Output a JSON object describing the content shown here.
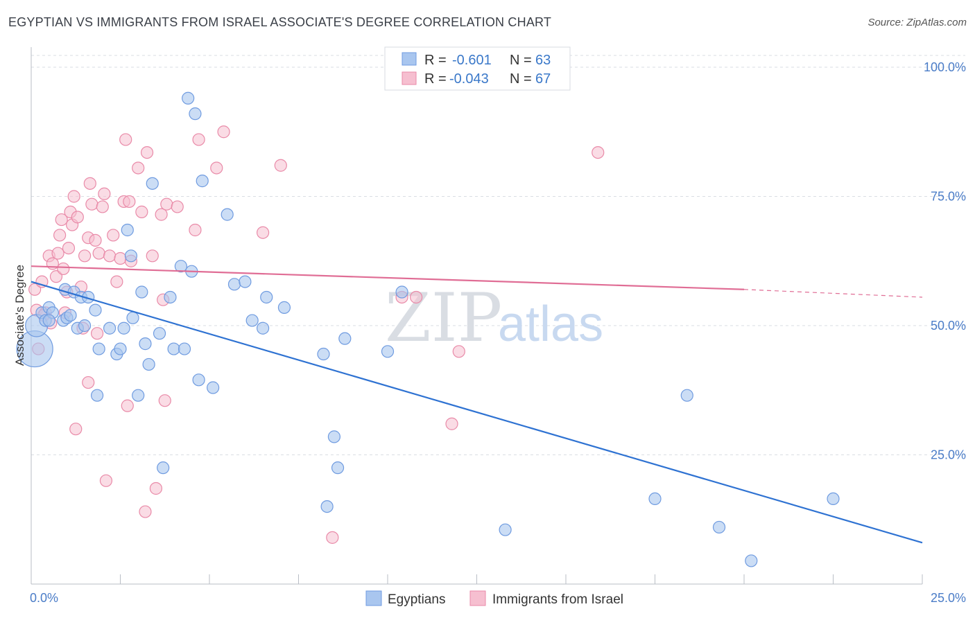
{
  "title": "EGYPTIAN VS IMMIGRANTS FROM ISRAEL ASSOCIATE'S DEGREE CORRELATION CHART",
  "source": "Source: ZipAtlas.com",
  "watermark": {
    "zip": "ZIP",
    "atlas": "atlas"
  },
  "legend": {
    "rows": [
      {
        "r_label": "R =",
        "r_value": "-0.601",
        "n_label": "N =",
        "n_value": "63"
      },
      {
        "r_label": "R =",
        "r_value": "-0.043",
        "n_label": "N =",
        "n_value": "67"
      }
    ]
  },
  "bottom_legend": [
    "Egyptians",
    "Immigrants from Israel"
  ],
  "colors": {
    "blue_fill": "#a9c6ef",
    "blue_stroke": "#6f9be0",
    "blue_line": "#2e72d2",
    "pink_fill": "#f6bfd0",
    "pink_stroke": "#e98aa8",
    "pink_line": "#e06d95",
    "grid": "#d9dde3",
    "tick_text": "#4a7cc7"
  },
  "chart_data": {
    "type": "scatter",
    "title": "EGYPTIAN VS IMMIGRANTS FROM ISRAEL ASSOCIATE'S DEGREE CORRELATION CHART",
    "xlabel": "",
    "ylabel": "Associate's Degree",
    "xlim": [
      0,
      25
    ],
    "ylim": [
      0,
      100
    ],
    "x_tick_labels": [
      "0.0%",
      "25.0%"
    ],
    "y_tick_labels": [
      "25.0%",
      "50.0%",
      "75.0%",
      "100.0%"
    ],
    "y_ticks": [
      25,
      50,
      75,
      100
    ],
    "grid": true,
    "legend_position": "top-center",
    "series": [
      {
        "name": "Egyptians",
        "r": -0.601,
        "n": 63,
        "trend": {
          "x": [
            0,
            25
          ],
          "y": [
            58.5,
            8.0
          ]
        },
        "points": [
          [
            0.1,
            45.5
          ],
          [
            0.15,
            50.0
          ],
          [
            0.3,
            52.5
          ],
          [
            0.4,
            51.0
          ],
          [
            0.5,
            53.5
          ],
          [
            0.6,
            52.5
          ],
          [
            0.9,
            51.0
          ],
          [
            1.0,
            51.5
          ],
          [
            0.95,
            57.0
          ],
          [
            1.2,
            56.5
          ],
          [
            1.4,
            55.5
          ],
          [
            1.6,
            55.5
          ],
          [
            1.3,
            49.5
          ],
          [
            1.5,
            50.0
          ],
          [
            1.8,
            53.0
          ],
          [
            1.9,
            45.5
          ],
          [
            2.2,
            49.5
          ],
          [
            2.4,
            44.5
          ],
          [
            2.5,
            45.5
          ],
          [
            2.6,
            49.5
          ],
          [
            2.7,
            68.5
          ],
          [
            2.8,
            63.5
          ],
          [
            2.85,
            51.5
          ],
          [
            3.1,
            56.5
          ],
          [
            3.2,
            46.5
          ],
          [
            3.3,
            42.5
          ],
          [
            3.4,
            77.5
          ],
          [
            3.6,
            48.5
          ],
          [
            3.7,
            22.5
          ],
          [
            3.9,
            55.5
          ],
          [
            4.0,
            45.5
          ],
          [
            4.2,
            61.5
          ],
          [
            4.3,
            45.5
          ],
          [
            4.4,
            94.0
          ],
          [
            4.5,
            60.5
          ],
          [
            4.6,
            91.0
          ],
          [
            4.7,
            39.5
          ],
          [
            4.8,
            78.0
          ],
          [
            5.1,
            38.0
          ],
          [
            5.5,
            71.5
          ],
          [
            5.7,
            58.0
          ],
          [
            6.0,
            58.5
          ],
          [
            6.2,
            51.0
          ],
          [
            6.5,
            49.5
          ],
          [
            6.6,
            55.5
          ],
          [
            7.1,
            53.5
          ],
          [
            8.2,
            44.5
          ],
          [
            8.3,
            15.0
          ],
          [
            8.5,
            28.5
          ],
          [
            8.6,
            22.5
          ],
          [
            8.8,
            47.5
          ],
          [
            10.0,
            45.0
          ],
          [
            10.4,
            56.5
          ],
          [
            13.3,
            10.5
          ],
          [
            17.5,
            16.5
          ],
          [
            18.4,
            36.5
          ],
          [
            19.3,
            11.0
          ],
          [
            20.2,
            4.5
          ],
          [
            22.5,
            16.5
          ],
          [
            1.85,
            36.5
          ],
          [
            0.5,
            51.0
          ],
          [
            1.1,
            52.0
          ],
          [
            3.0,
            36.5
          ]
        ],
        "sizes": {
          "0": 26,
          "1": 16
        }
      },
      {
        "name": "Immigrants from Israel",
        "r": -0.043,
        "n": 67,
        "trend": {
          "x": [
            0,
            20
          ],
          "y": [
            61.5,
            57.0
          ],
          "dashed_to": [
            25,
            55.5
          ]
        },
        "points": [
          [
            0.1,
            57.0
          ],
          [
            0.15,
            53.0
          ],
          [
            0.3,
            58.5
          ],
          [
            0.4,
            52.5
          ],
          [
            0.5,
            63.5
          ],
          [
            0.6,
            62.0
          ],
          [
            0.7,
            59.5
          ],
          [
            0.75,
            64.0
          ],
          [
            0.8,
            67.5
          ],
          [
            0.85,
            70.5
          ],
          [
            0.9,
            61.0
          ],
          [
            0.95,
            52.5
          ],
          [
            1.0,
            56.5
          ],
          [
            1.05,
            65.0
          ],
          [
            1.1,
            72.0
          ],
          [
            1.15,
            69.5
          ],
          [
            1.2,
            75.0
          ],
          [
            1.3,
            71.0
          ],
          [
            1.4,
            57.5
          ],
          [
            1.45,
            49.5
          ],
          [
            1.5,
            63.5
          ],
          [
            1.6,
            67.0
          ],
          [
            1.65,
            77.5
          ],
          [
            1.7,
            73.5
          ],
          [
            1.8,
            66.5
          ],
          [
            1.9,
            64.0
          ],
          [
            2.0,
            73.0
          ],
          [
            2.05,
            75.5
          ],
          [
            2.1,
            20.0
          ],
          [
            2.2,
            63.5
          ],
          [
            2.3,
            67.5
          ],
          [
            2.4,
            58.5
          ],
          [
            2.5,
            63.0
          ],
          [
            2.6,
            74.0
          ],
          [
            2.65,
            86.0
          ],
          [
            2.7,
            34.5
          ],
          [
            2.75,
            74.0
          ],
          [
            2.8,
            62.5
          ],
          [
            3.0,
            80.5
          ],
          [
            3.1,
            72.0
          ],
          [
            3.2,
            14.0
          ],
          [
            3.25,
            83.5
          ],
          [
            3.4,
            63.5
          ],
          [
            3.5,
            18.5
          ],
          [
            3.65,
            71.5
          ],
          [
            3.7,
            55.0
          ],
          [
            3.75,
            35.5
          ],
          [
            3.8,
            73.5
          ],
          [
            4.1,
            73.0
          ],
          [
            4.6,
            68.5
          ],
          [
            4.7,
            86.0
          ],
          [
            5.2,
            80.5
          ],
          [
            5.4,
            87.5
          ],
          [
            6.5,
            68.0
          ],
          [
            7.0,
            81.0
          ],
          [
            8.45,
            9.0
          ],
          [
            10.4,
            55.5
          ],
          [
            10.8,
            55.5
          ],
          [
            11.8,
            31.0
          ],
          [
            12.0,
            45.0
          ],
          [
            15.9,
            83.5
          ],
          [
            1.25,
            30.0
          ],
          [
            1.6,
            39.0
          ],
          [
            1.85,
            48.5
          ],
          [
            0.2,
            45.5
          ],
          [
            0.55,
            50.5
          ],
          [
            0.35,
            52.0
          ]
        ]
      }
    ]
  }
}
